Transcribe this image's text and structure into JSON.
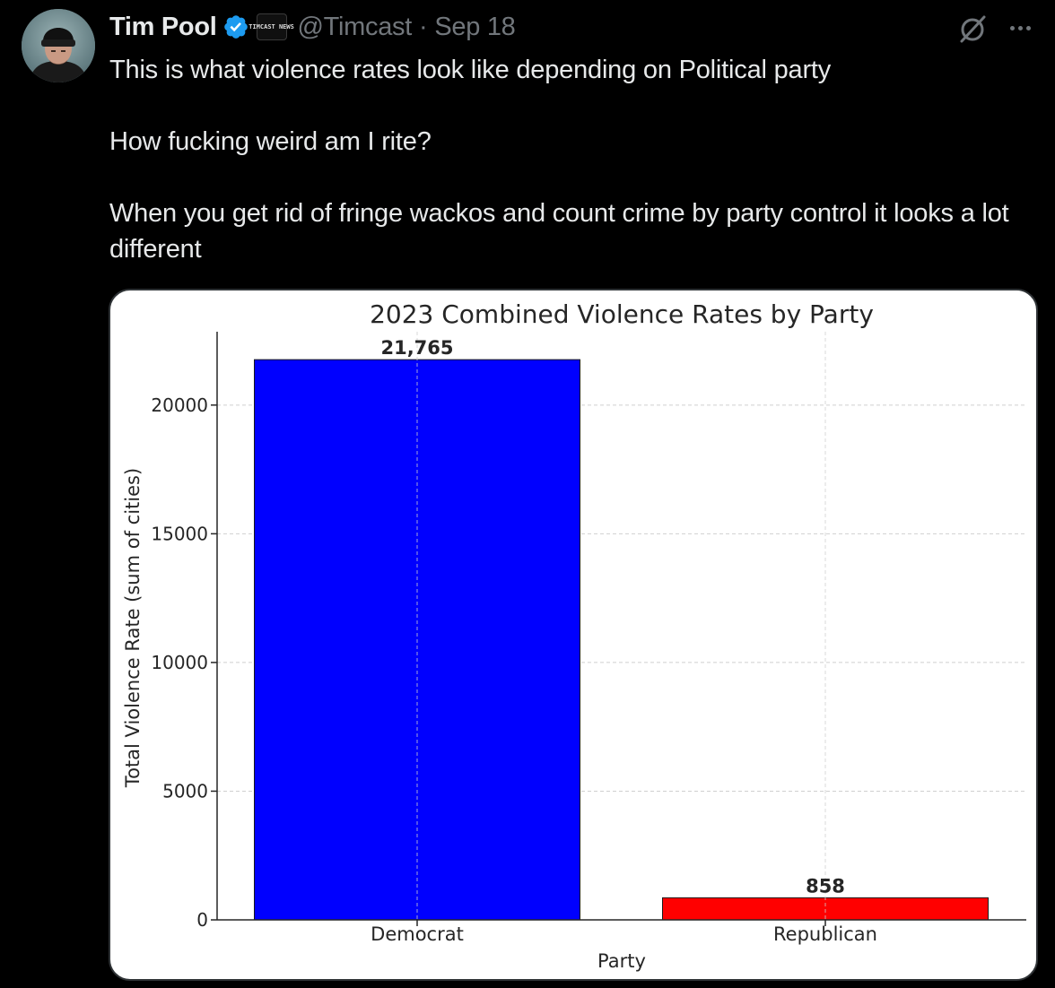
{
  "tweet": {
    "author": {
      "display_name": "Tim Pool",
      "handle": "@Timcast",
      "verified": true,
      "affiliate_badge_text": "TIMCAST NEWS"
    },
    "separator": "·",
    "date": "Sep 18",
    "text_paragraphs": [
      "This is what violence rates look like depending on Political party",
      "How fucking weird am I rite?",
      "When you get rid of fringe wackos and count crime by party control it looks a lot different"
    ],
    "icons": {
      "grok": "grok-icon",
      "more": "more-icon",
      "verified": "verified-badge-icon"
    },
    "colors": {
      "background": "#000000",
      "text": "#e7e9ea",
      "secondary": "#71767b",
      "verified": "#1d9bf0"
    }
  },
  "chart_data": {
    "type": "bar",
    "title": "2023 Combined Violence Rates by Party",
    "xlabel": "Party",
    "ylabel": "Total Violence Rate (sum of cities)",
    "categories": [
      "Democrat",
      "Republican"
    ],
    "values": [
      21765,
      858
    ],
    "value_labels": [
      "21,765",
      "858"
    ],
    "colors": [
      "#0000ff",
      "#ff0000"
    ],
    "ylim": [
      0,
      22850
    ],
    "yticks": [
      0,
      5000,
      10000,
      15000,
      20000
    ],
    "ytick_labels": [
      "0",
      "5000",
      "10000",
      "15000",
      "20000"
    ],
    "grid": true
  }
}
